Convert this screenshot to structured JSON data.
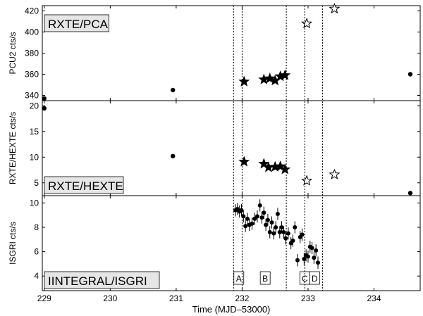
{
  "chart_data": [
    {
      "type": "scatter",
      "panel_label": "RXTE/PCA",
      "ylabel": "PCU2 cts/s",
      "ylim": [
        335,
        425
      ],
      "yticks": [
        340,
        360,
        380,
        400,
        420
      ],
      "series": [
        {
          "marker": "dot",
          "x": [
            229.0,
            230.95,
            234.55
          ],
          "y": [
            337,
            345,
            360
          ]
        },
        {
          "marker": "filled-star",
          "x": [
            232.03,
            232.33,
            232.42,
            232.5,
            232.58,
            232.65
          ],
          "y": [
            353,
            355,
            356,
            354,
            358,
            359
          ]
        },
        {
          "marker": "open-star",
          "x": [
            232.98,
            233.4
          ],
          "y": [
            408,
            422
          ]
        }
      ]
    },
    {
      "type": "scatter",
      "panel_label": "RXTE/HEXTE",
      "ylabel": "RXTE/HEXTE cts/s",
      "ylim": [
        2.5,
        21
      ],
      "yticks": [
        5,
        10,
        15,
        20
      ],
      "series": [
        {
          "marker": "dot",
          "x": [
            229.0,
            230.95,
            234.55
          ],
          "y": [
            19.5,
            10.2,
            3.0
          ]
        },
        {
          "marker": "filled-star",
          "x": [
            232.03,
            232.33,
            232.4,
            232.5,
            232.58,
            232.65
          ],
          "y": [
            9.1,
            8.7,
            8.0,
            8.1,
            8.2,
            7.6
          ]
        },
        {
          "marker": "open-star",
          "x": [
            232.98,
            233.4
          ],
          "y": [
            5.4,
            6.6
          ]
        }
      ]
    },
    {
      "type": "scatter",
      "panel_label": "IINTEGRAL/ISGRI",
      "ylabel": "ISGRI cts/s",
      "xlabel": "Time (MJD–53000)",
      "xlim": [
        228.97,
        234.7
      ],
      "xticks": [
        229,
        230,
        231,
        232,
        233,
        234
      ],
      "ylim": [
        2.8,
        10.6
      ],
      "yticks": [
        4,
        6,
        8,
        10
      ],
      "series": [
        {
          "marker": "dot-errorbar",
          "x": [
            231.9,
            231.93,
            231.96,
            231.99,
            232.02,
            232.05,
            232.08,
            232.11,
            232.15,
            232.19,
            232.23,
            232.27,
            232.3,
            232.33,
            232.36,
            232.39,
            232.42,
            232.45,
            232.48,
            232.51,
            232.54,
            232.57,
            232.6,
            232.63,
            232.66,
            232.7,
            232.74,
            232.77,
            232.8,
            232.84,
            232.88,
            232.91,
            232.94,
            232.97,
            233.0,
            233.03,
            233.06,
            233.09,
            233.12,
            233.15
          ],
          "y": [
            9.4,
            9.5,
            9.3,
            9.4,
            8.9,
            8.1,
            8.7,
            8.2,
            8.3,
            8.7,
            8.9,
            9.8,
            8.8,
            9.2,
            8.2,
            8.6,
            7.6,
            8.4,
            7.5,
            8.0,
            9.1,
            7.6,
            8.0,
            7.6,
            7.1,
            7.5,
            6.7,
            6.9,
            8.0,
            5.3,
            7.2,
            7.4,
            5.4,
            5.7,
            5.6,
            6.4,
            6.3,
            5.5,
            6.1,
            5.1
          ],
          "yerr": [
            0.5,
            0.5,
            0.5,
            0.5,
            0.5,
            0.5,
            0.5,
            0.5,
            0.5,
            0.5,
            0.5,
            0.5,
            0.5,
            0.5,
            0.5,
            0.5,
            0.5,
            0.5,
            0.5,
            0.5,
            0.5,
            0.5,
            0.5,
            0.5,
            0.5,
            0.5,
            0.5,
            0.5,
            0.5,
            0.5,
            0.5,
            0.5,
            0.5,
            0.5,
            0.5,
            0.5,
            0.5,
            0.5,
            0.5,
            0.5
          ]
        }
      ],
      "interval_labels": [
        {
          "text": "A",
          "x": 231.95
        },
        {
          "text": "B",
          "x": 232.35
        },
        {
          "text": "C",
          "x": 232.95
        },
        {
          "text": "D",
          "x": 233.1
        }
      ]
    }
  ],
  "vertical_lines_x": [
    231.87,
    232.0,
    232.67,
    232.95,
    233.22
  ],
  "colors": {
    "axes": "#000000",
    "marker": "#000000",
    "open_star_fill": "#ffffff",
    "label_box": "#e6e6e6"
  }
}
